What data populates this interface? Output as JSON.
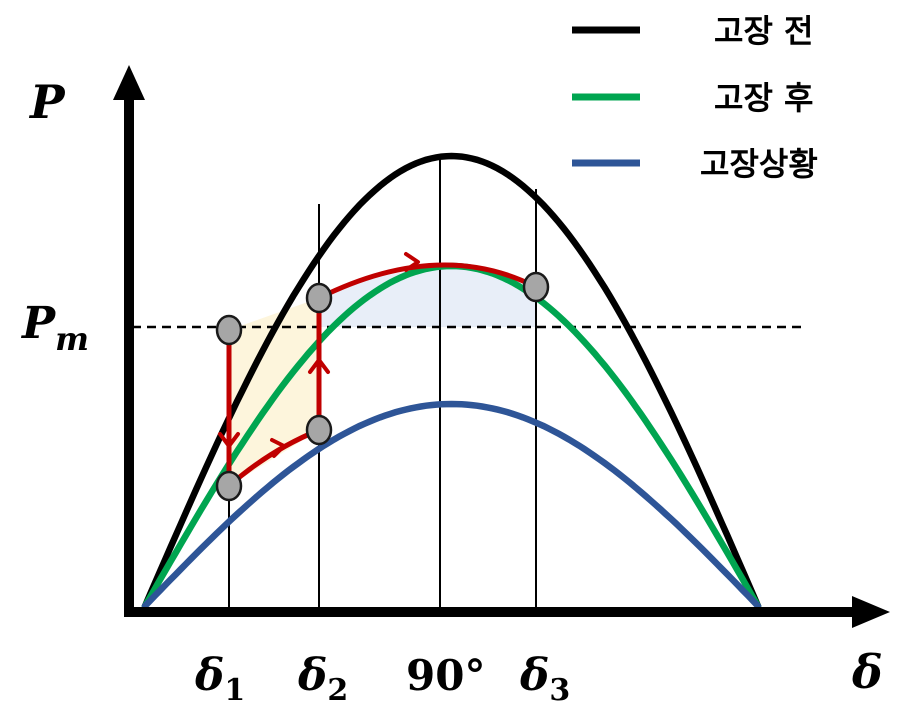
{
  "axes": {
    "y_label": "P",
    "x_label": "δ",
    "pm_label": {
      "main": "P",
      "sub": "m"
    }
  },
  "x_ticks": [
    {
      "main": "δ",
      "sub": "1"
    },
    {
      "main": "δ",
      "sub": "2"
    },
    {
      "main": "90°",
      "sub": ""
    },
    {
      "main": "δ",
      "sub": "3"
    }
  ],
  "legend": [
    {
      "label": "고장 전",
      "color": "#000000"
    },
    {
      "label": "고장 후",
      "color": "#00a550"
    },
    {
      "label": "고장상황",
      "color": "#2e5597"
    }
  ],
  "colors": {
    "path": "#c00000",
    "marker_fill": "#a6a6a6",
    "accel_area": "#fdf5dc",
    "decel_area": "#e8eef8"
  }
}
